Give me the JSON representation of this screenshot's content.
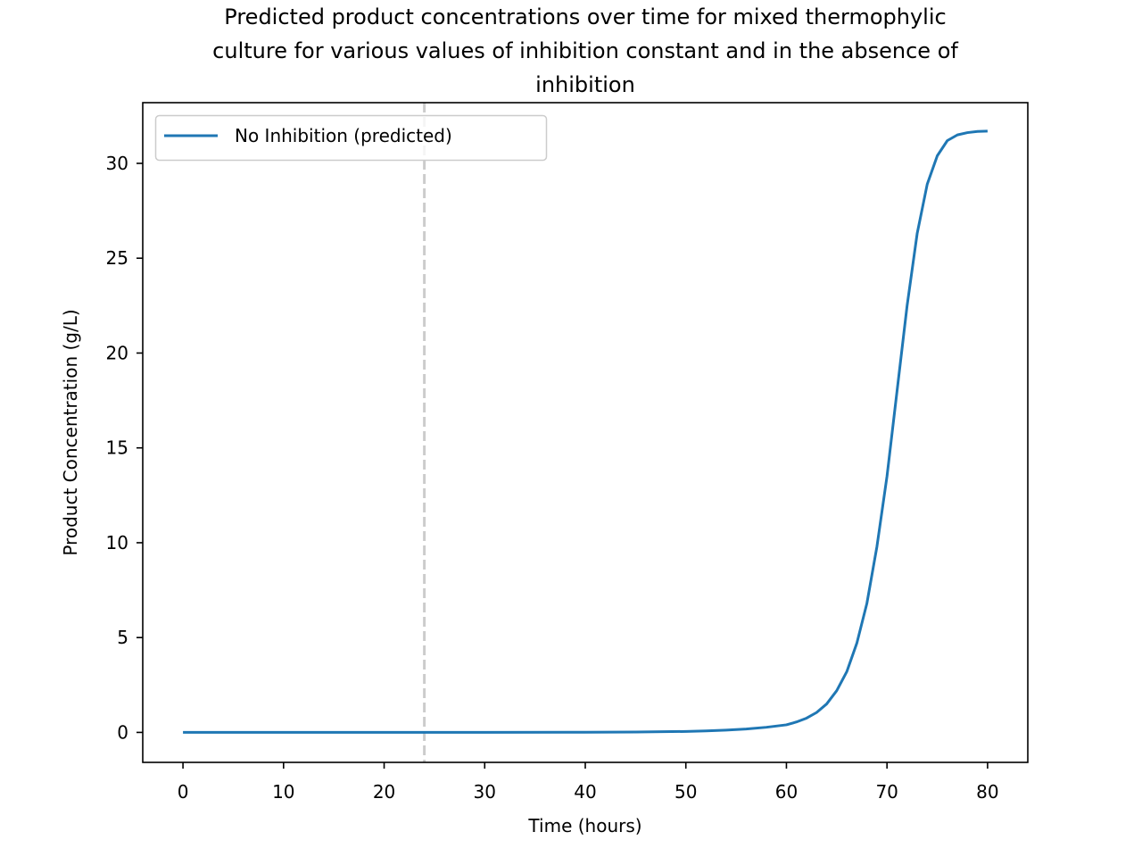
{
  "chart_data": {
    "type": "line",
    "title_lines": [
      "Predicted product concentrations over time for mixed thermophylic",
      "culture for various values of inhibition constant and in the absence of",
      "inhibition"
    ],
    "xlabel": "Time (hours)",
    "ylabel": "Product Concentration (g/L)",
    "xlim": [
      -4,
      84
    ],
    "ylim": [
      -1.58,
      33.2
    ],
    "xticks": [
      0,
      10,
      20,
      30,
      40,
      50,
      60,
      70,
      80
    ],
    "yticks": [
      0,
      5,
      10,
      15,
      20,
      25,
      30
    ],
    "grid": false,
    "legend_position": "upper left",
    "reference_lines": [
      {
        "orientation": "vertical",
        "x": 24,
        "style": "dashed",
        "color": "#cccccc"
      }
    ],
    "series": [
      {
        "name": "No Inhibition (predicted)",
        "color": "#1f77b4",
        "x": [
          0,
          10,
          20,
          24,
          30,
          40,
          45,
          50,
          52,
          54,
          56,
          58,
          60,
          61,
          62,
          63,
          64,
          65,
          66,
          67,
          68,
          69,
          70,
          71,
          72,
          73,
          74,
          75,
          76,
          77,
          78,
          79,
          80
        ],
        "y": [
          0,
          0,
          0,
          0,
          0,
          0.01,
          0.02,
          0.05,
          0.08,
          0.12,
          0.18,
          0.27,
          0.4,
          0.55,
          0.75,
          1.05,
          1.5,
          2.2,
          3.2,
          4.7,
          6.8,
          9.8,
          13.5,
          18.0,
          22.5,
          26.3,
          28.9,
          30.4,
          31.2,
          31.5,
          31.62,
          31.68,
          31.7
        ]
      }
    ]
  }
}
